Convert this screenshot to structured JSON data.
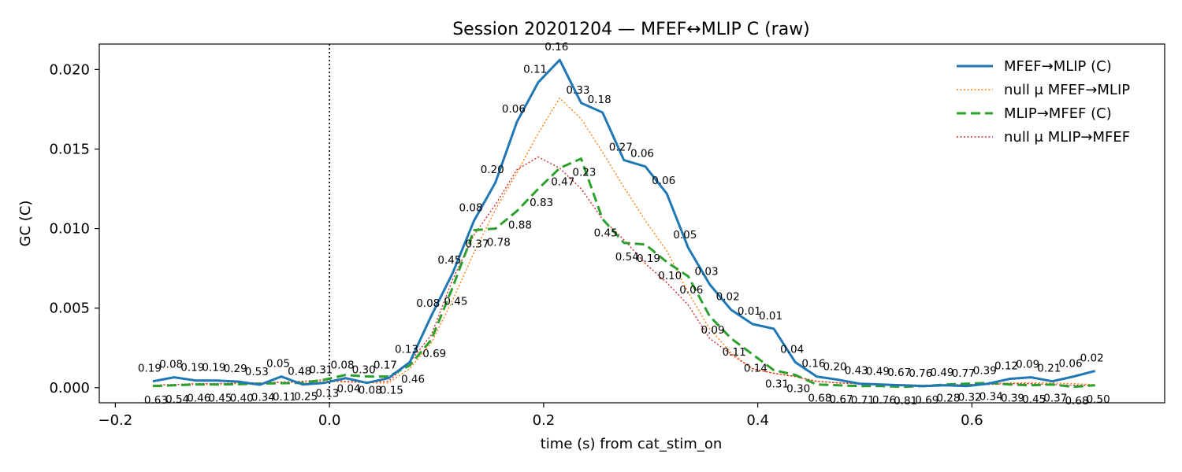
{
  "chart_data": {
    "type": "line",
    "title": "Session 20201204 — MFEF↔MLIP C (raw)",
    "xlabel": "time (s) from cat_stim_on",
    "ylabel": "GC (C)",
    "xlim": [
      -0.215,
      0.78
    ],
    "ylim": [
      -0.00095,
      0.0216
    ],
    "xticks": [
      -0.2,
      0.0,
      0.2,
      0.4,
      0.6
    ],
    "xtick_labels": [
      "−0.2",
      "0.0",
      "0.2",
      "0.4",
      "0.6"
    ],
    "yticks": [
      0.0,
      0.005,
      0.01,
      0.015,
      0.02
    ],
    "ytick_labels": [
      "0.000",
      "0.005",
      "0.010",
      "0.015",
      "0.020"
    ],
    "grid": false,
    "legend_position": "top-right",
    "vline": {
      "x": 0.0,
      "style": "dotted",
      "color": "#000000"
    },
    "x": [
      -0.165,
      -0.145,
      -0.125,
      -0.105,
      -0.085,
      -0.065,
      -0.045,
      -0.025,
      -0.005,
      0.015,
      0.035,
      0.055,
      0.075,
      0.095,
      0.115,
      0.135,
      0.155,
      0.175,
      0.195,
      0.215,
      0.235,
      0.255,
      0.275,
      0.295,
      0.315,
      0.335,
      0.355,
      0.375,
      0.395,
      0.415,
      0.435,
      0.455,
      0.475,
      0.495,
      0.515,
      0.535,
      0.555,
      0.575,
      0.595,
      0.615,
      0.635,
      0.655,
      0.675,
      0.695,
      0.715
    ],
    "series": [
      {
        "name": "MFEF→MLIP (C)",
        "color": "#1f77b4",
        "style": "solid",
        "width": 3,
        "values": [
          0.0004,
          0.00065,
          0.00045,
          0.00045,
          0.00038,
          0.00018,
          0.0007,
          0.0002,
          0.0003,
          0.0006,
          0.0003,
          0.0006,
          0.0016,
          0.0045,
          0.0072,
          0.0105,
          0.0129,
          0.0167,
          0.0192,
          0.0206,
          0.0179,
          0.0173,
          0.0143,
          0.0139,
          0.0122,
          0.0088,
          0.0065,
          0.0049,
          0.004,
          0.0037,
          0.0016,
          0.0007,
          0.0005,
          0.00025,
          0.0002,
          0.00015,
          0.0001,
          0.00015,
          0.0001,
          0.00025,
          0.00055,
          0.00065,
          0.0004,
          0.0007,
          0.00105
        ],
        "p_labels": [
          "0.19",
          "0.08",
          "0.19",
          "0.19",
          "0.29",
          "0.53",
          "0.05",
          "0.48",
          "0.31",
          "0.08",
          "0.30",
          "0.17",
          "0.13",
          "0.08",
          "0.45",
          "0.08",
          "0.20",
          "0.06",
          "0.11",
          "0.16",
          "0.33",
          "0.18",
          "0.27",
          "0.06",
          "0.06",
          "0.05",
          "0.03",
          "0.02",
          "0.01",
          "0.01",
          "0.04",
          "0.16",
          "0.20",
          "0.43",
          "0.49",
          "0.67",
          "0.76",
          "0.49",
          "0.77",
          "0.39",
          "0.12",
          "0.09",
          "0.21",
          "0.06",
          "0.02"
        ]
      },
      {
        "name": "null μ MFEF→MLIP",
        "color": "#ff7f0e",
        "style": "dotted",
        "width": 1.4,
        "values": [
          0.00015,
          0.0002,
          0.0002,
          0.0002,
          0.00025,
          0.0002,
          0.00035,
          0.0003,
          0.0004,
          0.00035,
          0.0003,
          0.0003,
          0.0012,
          0.0028,
          0.0055,
          0.0085,
          0.0112,
          0.0135,
          0.016,
          0.0182,
          0.0169,
          0.0148,
          0.0126,
          0.0105,
          0.0086,
          0.006,
          0.0037,
          0.0022,
          0.0012,
          0.0009,
          0.0007,
          0.0004,
          0.0003,
          0.00025,
          0.0002,
          0.0002,
          0.00015,
          0.0002,
          0.0002,
          0.00025,
          0.0003,
          0.0003,
          0.0003,
          0.00025,
          0.0002
        ]
      },
      {
        "name": "MLIP→MFEF (C)",
        "color": "#2ca02c",
        "style": "dashed",
        "width": 3,
        "values": [
          0.0001,
          0.00015,
          0.0002,
          0.0002,
          0.00022,
          0.00025,
          0.00028,
          0.0003,
          0.0005,
          0.0008,
          0.0007,
          0.0007,
          0.0014,
          0.003,
          0.0063,
          0.0099,
          0.01,
          0.0111,
          0.0125,
          0.0138,
          0.0144,
          0.0106,
          0.0091,
          0.009,
          0.0079,
          0.007,
          0.0045,
          0.0031,
          0.0021,
          0.0011,
          0.0008,
          0.0002,
          0.00015,
          0.0001,
          0.0001,
          5e-05,
          0.0001,
          0.0002,
          0.00025,
          0.0003,
          0.0002,
          0.00015,
          0.0002,
          5e-05,
          0.00015
        ]
      },
      {
        "name": "null μ MLIP→MFEF",
        "color": "#d62728",
        "style": "dotted",
        "width": 1.4,
        "values": [
          0.00015,
          0.0002,
          0.00025,
          0.00025,
          0.0003,
          0.0003,
          0.00035,
          0.0004,
          0.0005,
          0.0004,
          0.00035,
          0.0004,
          0.0016,
          0.0033,
          0.0068,
          0.0096,
          0.0115,
          0.0137,
          0.0145,
          0.0138,
          0.0125,
          0.0106,
          0.0093,
          0.0078,
          0.0066,
          0.0052,
          0.0031,
          0.0021,
          0.0012,
          0.0009,
          0.0007,
          0.0004,
          0.0003,
          0.00025,
          0.0002,
          0.00015,
          0.0001,
          0.00015,
          0.0002,
          0.0002,
          0.00025,
          0.00025,
          0.0002,
          0.00015,
          0.00015
        ],
        "_note": ""
      }
    ],
    "p_labels_reverse": [
      "0.63",
      "0.54",
      "0.46",
      "0.45",
      "0.40",
      "0.34",
      "0.11",
      "0.25",
      "0.13",
      "0.04",
      "0.08",
      "0.15",
      "0.46",
      "0.69",
      "0.45",
      "0.37",
      "0.78",
      "0.88",
      "0.83",
      "0.47",
      "0.23",
      "0.45",
      "0.54",
      "0.19",
      "0.10",
      "0.06",
      "0.09",
      "0.11",
      "0.14",
      "0.31",
      "0.30",
      "0.68",
      "0.67",
      "0.71",
      "0.76",
      "0.81",
      "0.69",
      "0.28",
      "0.32",
      "0.34",
      "0.39",
      "0.45",
      "0.37",
      "0.68",
      "0.50"
    ]
  }
}
